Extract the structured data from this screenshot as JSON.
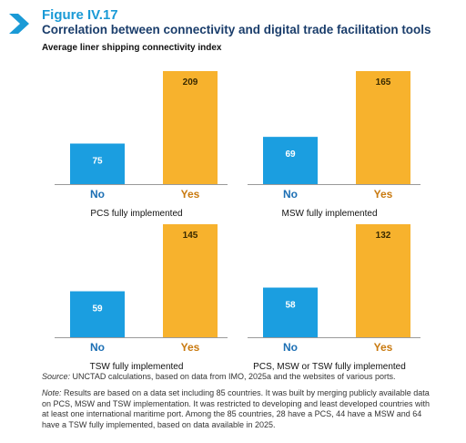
{
  "figure": {
    "label": "Figure IV.17",
    "title": "Correlation between connectivity and digital trade facilitation tools",
    "subtitle": "Average liner shipping connectivity index"
  },
  "colors": {
    "no": "#1b9ee0",
    "yes": "#f7b22d",
    "label": "#1c6fb4",
    "title": "#1a3d6b"
  },
  "chart_data": [
    {
      "type": "bar",
      "title": "PCS fully implemented",
      "categories": [
        "No",
        "Yes"
      ],
      "values": [
        75,
        209
      ],
      "ylim": [
        0,
        209
      ]
    },
    {
      "type": "bar",
      "title": "MSW fully implemented",
      "categories": [
        "No",
        "Yes"
      ],
      "values": [
        69,
        165
      ],
      "ylim": [
        0,
        165
      ]
    },
    {
      "type": "bar",
      "title": "TSW fully implemented",
      "categories": [
        "No",
        "Yes"
      ],
      "values": [
        59,
        145
      ],
      "ylim": [
        0,
        145
      ]
    },
    {
      "type": "bar",
      "title": "PCS, MSW or TSW fully implemented",
      "categories": [
        "No",
        "Yes"
      ],
      "values": [
        58,
        132
      ],
      "ylim": [
        0,
        132
      ]
    }
  ],
  "source": {
    "label": "Source:",
    "text": " UNCTAD calculations, based on data from IMO, 2025a and the websites of various ports."
  },
  "note": {
    "label": "Note:",
    "text": " Results are based on a data set including 85 countries. It was built by merging publicly available data on PCS, MSW and TSW implementation. It was restricted to developing and least developed countries with at least one international maritime port. Among the 85 countries, 28 have a PCS, 44 have a MSW and 64 have a TSW fully implemented, based on data available in 2025."
  }
}
